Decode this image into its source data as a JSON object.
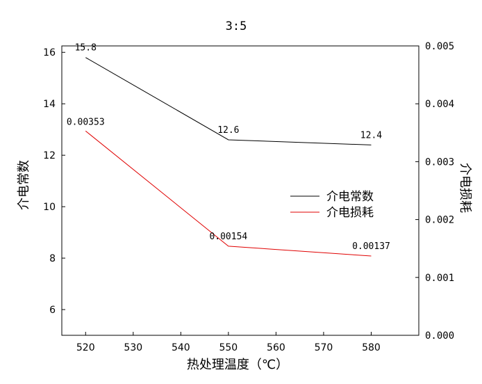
{
  "chart_data": {
    "type": "line",
    "title": "3:5",
    "xlabel": "热处理温度（℃）",
    "ylabel_left": "介电常数",
    "ylabel_right": "介电损耗",
    "x_ticks": [
      520,
      530,
      540,
      550,
      560,
      570,
      580
    ],
    "xlim": [
      515,
      590
    ],
    "y_left_ticks": [
      6,
      8,
      10,
      12,
      14,
      16
    ],
    "ylim_left": [
      5,
      16.25
    ],
    "y_right_ticks": [
      "0.000",
      "0.001",
      "0.002",
      "0.003",
      "0.004",
      "0.005"
    ],
    "ylim_right": [
      0,
      0.005
    ],
    "legend_position": "center-right",
    "series": [
      {
        "name": "介电常数",
        "axis": "left",
        "color": "#000000",
        "x": [
          520,
          550,
          580
        ],
        "y": [
          15.8,
          12.6,
          12.4
        ],
        "labels": [
          "15.8",
          "12.6",
          "12.4"
        ]
      },
      {
        "name": "介电损耗",
        "axis": "right",
        "color": "#e00000",
        "x": [
          520,
          550,
          580
        ],
        "y": [
          0.00353,
          0.00154,
          0.00137
        ],
        "labels": [
          "0.00353",
          "0.00154",
          "0.00137"
        ]
      }
    ]
  }
}
